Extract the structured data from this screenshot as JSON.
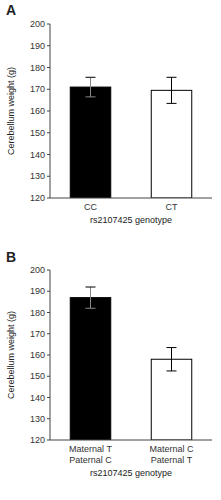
{
  "chart_data": [
    {
      "type": "bar",
      "title": "A",
      "categories": [
        "CC",
        "CT"
      ],
      "values": [
        171.0,
        169.5
      ],
      "errors": [
        4.5,
        6.0
      ],
      "colors": [
        "black",
        "white"
      ],
      "xlabel": "rs2107425 genotype",
      "ylabel": "Cerebellum weight (g)",
      "ylim": [
        120,
        200
      ],
      "yticks": [
        120,
        130,
        140,
        150,
        160,
        170,
        180,
        190,
        200
      ]
    },
    {
      "type": "bar",
      "title": "B",
      "categories": [
        "Maternal T\nPaternal C",
        "Maternal C\nPaternal T"
      ],
      "values": [
        187.0,
        158.0
      ],
      "errors": [
        5.0,
        5.5
      ],
      "colors": [
        "black",
        "white"
      ],
      "xlabel": "rs2107425 genotype",
      "ylabel": "Cerebellum weight (g)",
      "ylim": [
        120,
        200
      ],
      "yticks": [
        120,
        130,
        140,
        150,
        160,
        170,
        180,
        190,
        200
      ]
    }
  ]
}
